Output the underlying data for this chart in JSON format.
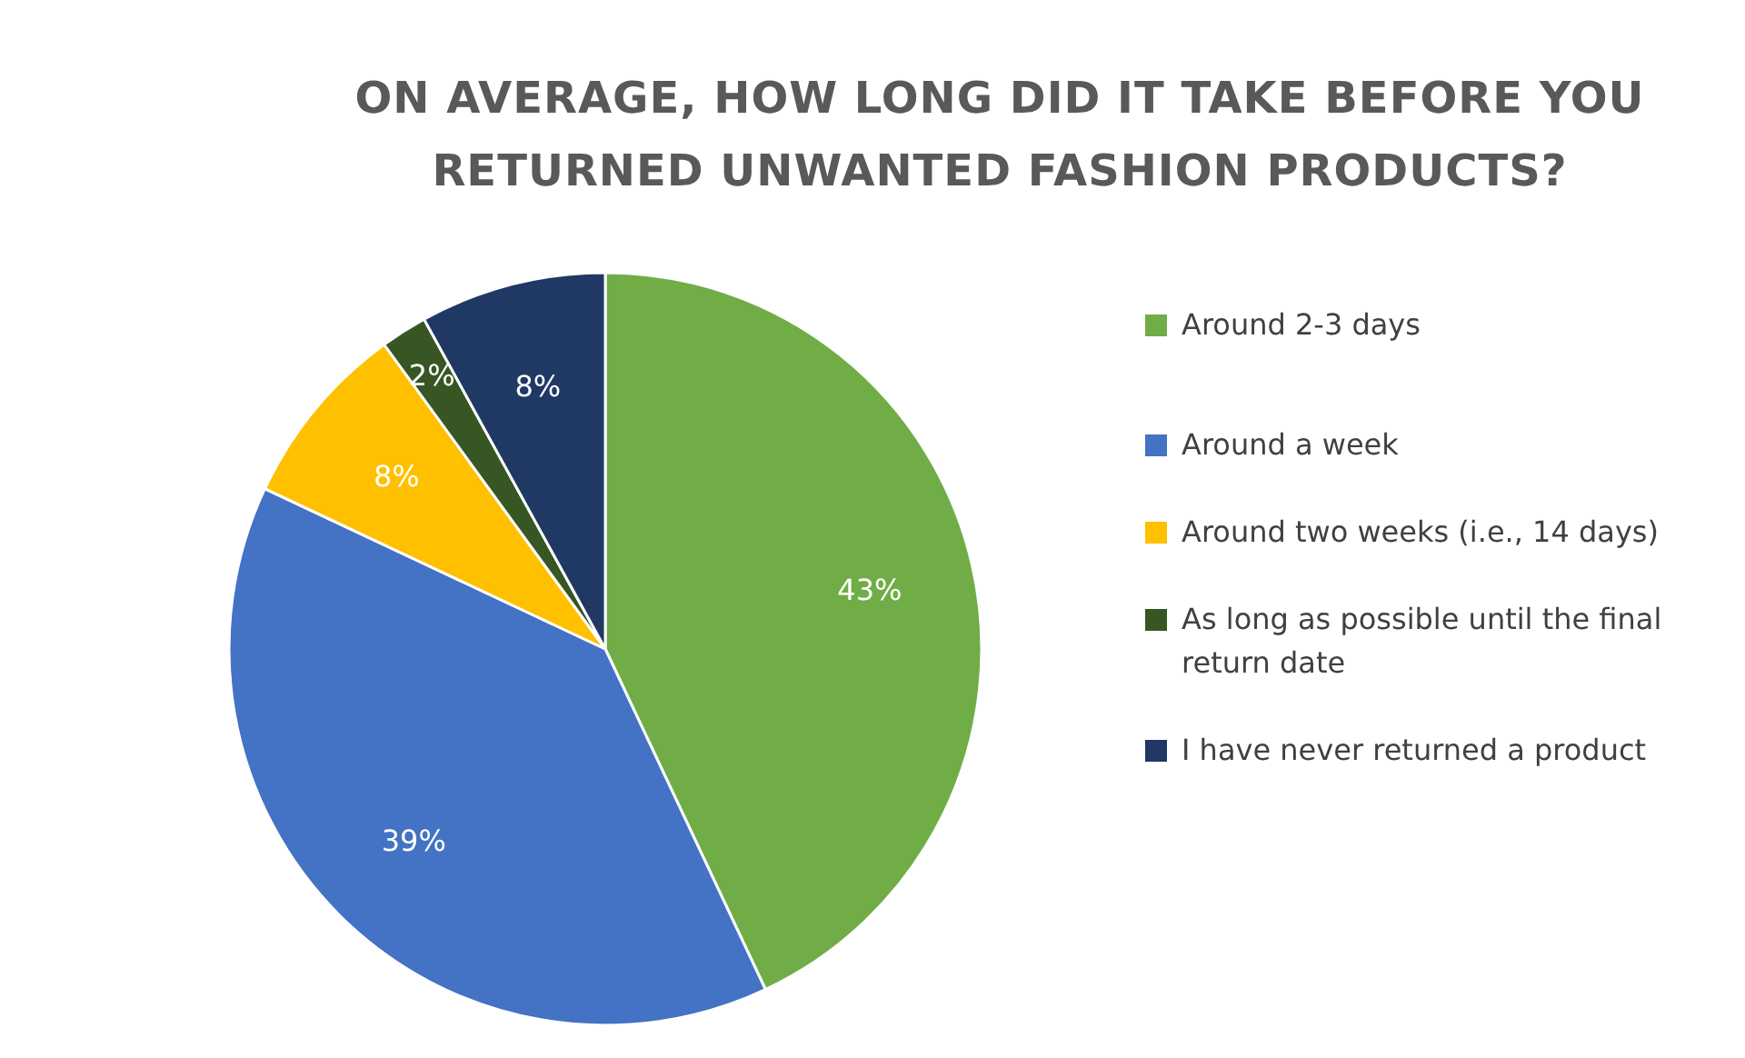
{
  "chart_data": {
    "type": "pie",
    "title": "ON AVERAGE, HOW LONG DID IT TAKE BEFORE YOU RETURNED UNWANTED FASHION PRODUCTS?",
    "categories": [
      "Around 2-3 days",
      "Around a week",
      "Around two weeks (i.e., 14 days)",
      "As long as possible until the final return date",
      "I have never returned a product"
    ],
    "values": [
      43,
      39,
      8,
      2,
      8
    ],
    "value_labels": [
      "43%",
      "39%",
      "8%",
      "2%",
      "8%"
    ],
    "colors": [
      "#70ad47",
      "#4472c4",
      "#ffc000",
      "#375623",
      "#203864"
    ],
    "legend": "right"
  }
}
